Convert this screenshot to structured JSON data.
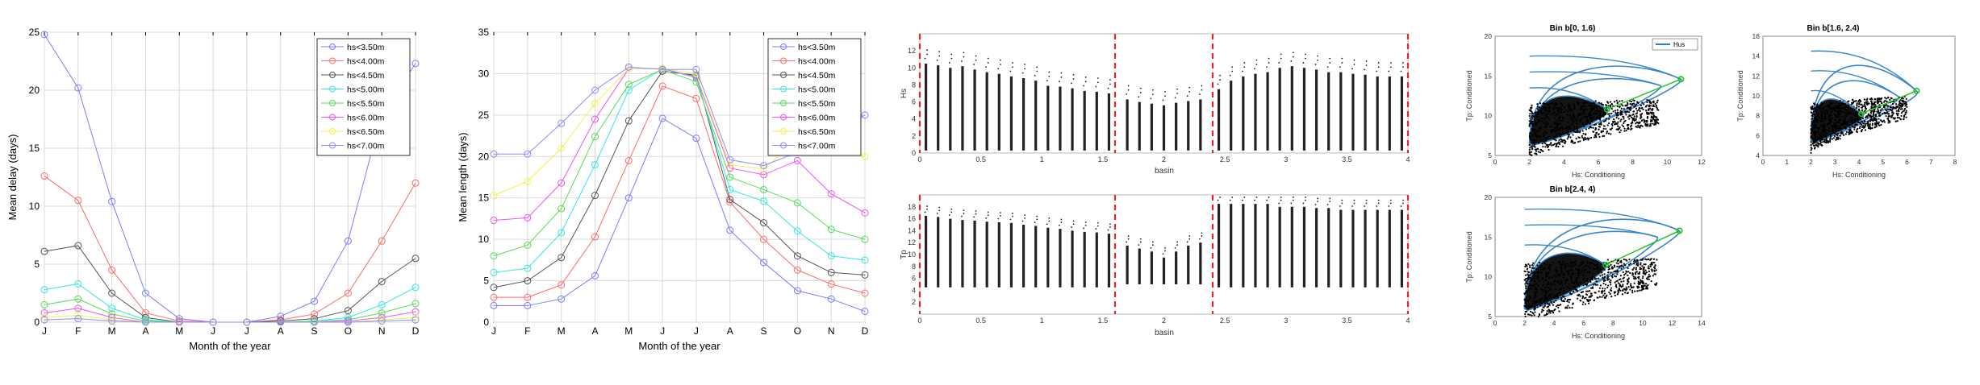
{
  "months": [
    "J",
    "F",
    "M",
    "A",
    "M",
    "J",
    "J",
    "A",
    "S",
    "O",
    "N",
    "D"
  ],
  "panel_a": {
    "ylabel": "Mean delay (days)",
    "xlabel": "Month of the year",
    "yticks": [
      "0",
      "5",
      "10",
      "15",
      "20",
      "25"
    ],
    "ylim": [
      0,
      25
    ]
  },
  "panel_b": {
    "ylabel": "Mean length (days)",
    "xlabel": "Month of the year",
    "yticks": [
      "0",
      "5",
      "10",
      "15",
      "20",
      "25",
      "30",
      "35"
    ],
    "ylim": [
      0,
      35
    ]
  },
  "basin_top": {
    "ylabel": "Hs",
    "xlabel": "basin",
    "xticks": [
      "0",
      "0.5",
      "1",
      "1.5",
      "2",
      "2.5",
      "3",
      "3.5",
      "4"
    ],
    "yticks": [
      "0",
      "2",
      "4",
      "6",
      "8",
      "10",
      "12"
    ],
    "ylim": [
      0,
      14
    ]
  },
  "basin_bottom": {
    "ylabel": "Tp",
    "xlabel": "basin",
    "xticks": [
      "0",
      "0.5",
      "1",
      "1.5",
      "2",
      "2.5",
      "3",
      "3.5",
      "4"
    ],
    "yticks": [
      "2",
      "4",
      "6",
      "8",
      "10",
      "12",
      "14",
      "16",
      "18"
    ],
    "ylim": [
      0,
      20
    ]
  },
  "scatter_1": {
    "title": "Bin b[0, 1.6)",
    "xlabel": "Hs: Conditioning",
    "ylabel": "Tp: Conditioned",
    "legend": "Hus",
    "xticks": [
      "0",
      "2",
      "4",
      "6",
      "8",
      "10",
      "12"
    ],
    "yticks": [
      "5",
      "10",
      "15",
      "20"
    ]
  },
  "scatter_2": {
    "title": "Bin b[1.6, 2.4)",
    "xlabel": "Hs: Conditioning",
    "ylabel": "Tp: Conditioned",
    "xticks": [
      "0",
      "1",
      "2",
      "3",
      "4",
      "5",
      "6",
      "7",
      "8"
    ],
    "yticks": [
      "4",
      "6",
      "8",
      "10",
      "12",
      "14",
      "16"
    ]
  },
  "scatter_3": {
    "title": "Bin b[2.4, 4)",
    "xlabel": "Hs: Conditioning",
    "ylabel": "Tp: Conditioned",
    "xticks": [
      "0",
      "2",
      "4",
      "6",
      "8",
      "10",
      "12",
      "14"
    ],
    "yticks": [
      "5",
      "10",
      "15",
      "20"
    ]
  },
  "chart_data": [
    {
      "type": "line",
      "categories": [
        "J",
        "F",
        "M",
        "A",
        "M",
        "J",
        "J",
        "A",
        "S",
        "O",
        "N",
        "D"
      ],
      "ylim": [
        0,
        25
      ],
      "xlabel": "Month of the year",
      "ylabel": "Mean delay (days)",
      "legend_position": "top-right",
      "grid": true,
      "series": [
        {
          "name": "hs<3.50m",
          "color": "#7b7bff",
          "values": [
            24.8,
            20.2,
            10.4,
            2.5,
            0.3,
            0.0,
            0.0,
            0.5,
            1.8,
            7.0,
            18.0,
            22.3
          ]
        },
        {
          "name": "hs<4.00m",
          "color": "#ff6b6b",
          "values": [
            12.6,
            10.5,
            4.5,
            0.8,
            0.1,
            0.0,
            0.0,
            0.2,
            0.7,
            2.5,
            7.0,
            12.0
          ]
        },
        {
          "name": "hs<4.50m",
          "color": "#555555",
          "values": [
            6.1,
            6.6,
            2.5,
            0.4,
            0.0,
            0.0,
            0.0,
            0.1,
            0.3,
            1.0,
            3.5,
            5.5
          ]
        },
        {
          "name": "hs<5.00m",
          "color": "#33e6e6",
          "values": [
            2.8,
            3.3,
            1.2,
            0.2,
            0.0,
            0.0,
            0.0,
            0.0,
            0.1,
            0.4,
            1.5,
            3.0
          ]
        },
        {
          "name": "hs<5.50m",
          "color": "#55dd55",
          "values": [
            1.5,
            2.0,
            0.7,
            0.1,
            0.0,
            0.0,
            0.0,
            0.0,
            0.1,
            0.2,
            0.8,
            1.6
          ]
        },
        {
          "name": "hs<6.00m",
          "color": "#ee55ee",
          "values": [
            0.8,
            1.2,
            0.4,
            0.0,
            0.0,
            0.0,
            0.0,
            0.0,
            0.0,
            0.1,
            0.4,
            0.9
          ]
        },
        {
          "name": "hs<6.50m",
          "color": "#f2f24a",
          "values": [
            0.4,
            0.6,
            0.2,
            0.0,
            0.0,
            0.0,
            0.0,
            0.0,
            0.0,
            0.0,
            0.2,
            0.4
          ]
        },
        {
          "name": "hs<7.00m",
          "color": "#8c8cff",
          "values": [
            0.2,
            0.3,
            0.1,
            0.0,
            0.0,
            0.0,
            0.0,
            0.0,
            0.0,
            0.0,
            0.1,
            0.2
          ]
        }
      ]
    },
    {
      "type": "line",
      "categories": [
        "J",
        "F",
        "M",
        "A",
        "M",
        "J",
        "J",
        "A",
        "S",
        "O",
        "N",
        "D"
      ],
      "ylim": [
        0,
        35
      ],
      "xlabel": "Month of the year",
      "ylabel": "Mean length (days)",
      "legend_position": "top-right",
      "grid": true,
      "series": [
        {
          "name": "hs<3.50m",
          "color": "#7b7bff",
          "values": [
            2.0,
            2.0,
            2.8,
            5.6,
            15.0,
            24.6,
            22.2,
            11.1,
            7.2,
            3.8,
            2.8,
            1.3
          ]
        },
        {
          "name": "hs<4.00m",
          "color": "#ff6b6b",
          "values": [
            3.0,
            3.0,
            4.5,
            10.3,
            19.5,
            28.5,
            27.0,
            14.5,
            10.0,
            6.3,
            4.6,
            3.5
          ]
        },
        {
          "name": "hs<4.50m",
          "color": "#555555",
          "values": [
            4.2,
            5.0,
            7.8,
            15.3,
            24.3,
            30.3,
            29.8,
            14.8,
            12.0,
            8.0,
            6.0,
            5.7
          ]
        },
        {
          "name": "hs<5.00m",
          "color": "#33e6e6",
          "values": [
            6.0,
            6.5,
            10.8,
            19.0,
            28.0,
            30.6,
            29.5,
            16.0,
            14.6,
            11.0,
            8.0,
            7.5
          ]
        },
        {
          "name": "hs<5.50m",
          "color": "#55dd55",
          "values": [
            8.0,
            9.3,
            13.7,
            22.4,
            28.7,
            30.5,
            29.0,
            17.5,
            16.0,
            14.4,
            11.2,
            10.0
          ]
        },
        {
          "name": "hs<6.00m",
          "color": "#ee55ee",
          "values": [
            12.3,
            12.6,
            16.8,
            24.5,
            30.6,
            30.6,
            29.6,
            18.6,
            17.8,
            19.5,
            15.5,
            13.2
          ]
        },
        {
          "name": "hs<6.50m",
          "color": "#f2f24a",
          "values": [
            15.3,
            17.0,
            21.0,
            26.4,
            30.6,
            30.6,
            30.0,
            19.0,
            18.5,
            22.0,
            21.0,
            20.0
          ]
        },
        {
          "name": "hs<7.00m",
          "color": "#8c8cff",
          "values": [
            20.3,
            20.3,
            24.0,
            28.0,
            30.8,
            30.5,
            30.5,
            19.6,
            18.9,
            20.5,
            22.5,
            25.0
          ]
        }
      ]
    },
    {
      "type": "scatter",
      "xlabel": "basin",
      "ylabel": "Hs",
      "xlim": [
        0,
        4
      ],
      "ylim": [
        0,
        14
      ],
      "dividers": [
        1.6,
        2.4
      ],
      "x": [
        0.05,
        0.15,
        0.25,
        0.35,
        0.45,
        0.55,
        0.65,
        0.75,
        0.85,
        0.95,
        1.05,
        1.15,
        1.25,
        1.35,
        1.45,
        1.55,
        1.7,
        1.8,
        1.9,
        2.0,
        2.1,
        2.2,
        2.3,
        2.45,
        2.55,
        2.65,
        2.75,
        2.85,
        2.95,
        3.05,
        3.15,
        3.25,
        3.35,
        3.45,
        3.55,
        3.65,
        3.75,
        3.85,
        3.95
      ],
      "ymin": [
        0.3,
        0.3,
        0.3,
        0.3,
        0.3,
        0.3,
        0.3,
        0.3,
        0.3,
        0.3,
        0.3,
        0.3,
        0.3,
        0.3,
        0.3,
        0.3,
        0.3,
        0.3,
        0.3,
        0.3,
        0.3,
        0.3,
        0.3,
        0.3,
        0.3,
        0.3,
        0.3,
        0.3,
        0.3,
        0.3,
        0.3,
        0.3,
        0.3,
        0.3,
        0.3,
        0.3,
        0.3,
        0.3,
        0.3
      ],
      "ymax": [
        10.5,
        10.3,
        10.0,
        10.2,
        9.8,
        9.5,
        9.3,
        9.0,
        8.8,
        8.5,
        7.9,
        7.8,
        7.6,
        7.3,
        7.2,
        7.0,
        6.3,
        6.0,
        5.8,
        5.6,
        5.9,
        6.1,
        6.3,
        7.5,
        8.5,
        9.0,
        9.3,
        9.5,
        10.0,
        10.2,
        10.0,
        9.8,
        9.5,
        9.5,
        9.3,
        9.2,
        9.0,
        9.0,
        9.0
      ]
    },
    {
      "type": "scatter",
      "xlabel": "basin",
      "ylabel": "Tp",
      "xlim": [
        0,
        4
      ],
      "ylim": [
        0,
        20
      ],
      "dividers": [
        1.6,
        2.4
      ],
      "x": [
        0.05,
        0.15,
        0.25,
        0.35,
        0.45,
        0.55,
        0.65,
        0.75,
        0.85,
        0.95,
        1.05,
        1.15,
        1.25,
        1.35,
        1.45,
        1.55,
        1.7,
        1.8,
        1.9,
        2.0,
        2.1,
        2.2,
        2.3,
        2.45,
        2.55,
        2.65,
        2.75,
        2.85,
        2.95,
        3.05,
        3.15,
        3.25,
        3.35,
        3.45,
        3.55,
        3.65,
        3.75,
        3.85,
        3.95
      ],
      "ymin": [
        4.5,
        4.5,
        4.5,
        4.5,
        4.5,
        4.5,
        4.5,
        4.5,
        4.5,
        4.5,
        4.5,
        4.5,
        4.5,
        4.5,
        4.5,
        4.5,
        5.0,
        5.0,
        5.0,
        5.0,
        5.0,
        5.0,
        5.0,
        4.5,
        4.5,
        4.5,
        4.5,
        4.5,
        4.5,
        4.5,
        4.5,
        4.5,
        4.5,
        4.5,
        4.5,
        4.5,
        4.5,
        4.5,
        4.5
      ],
      "ymax": [
        16.5,
        16.3,
        16.0,
        15.8,
        15.7,
        15.5,
        15.4,
        15.3,
        15.0,
        14.8,
        14.5,
        14.3,
        14.0,
        13.8,
        13.7,
        13.5,
        11.5,
        11.0,
        10.5,
        9.5,
        10.5,
        11.5,
        12.0,
        18.5,
        18.5,
        18.5,
        18.5,
        18.5,
        18.0,
        18.0,
        18.0,
        17.8,
        17.8,
        17.5,
        17.5,
        17.5,
        17.5,
        17.5,
        17.5
      ]
    },
    {
      "type": "scatter",
      "title": "Bin b[0, 1.6)",
      "xlabel": "Hs: Conditioning",
      "ylabel": "Tp: Conditioned",
      "xlim": [
        0,
        12
      ],
      "ylim": [
        5,
        20
      ],
      "series": [
        {
          "name": "Hus",
          "color": "#2f7fc1"
        }
      ]
    },
    {
      "type": "scatter",
      "title": "Bin b[1.6, 2.4)",
      "xlabel": "Hs: Conditioning",
      "ylabel": "Tp: Conditioned",
      "xlim": [
        0,
        8
      ],
      "ylim": [
        4,
        16
      ]
    },
    {
      "type": "scatter",
      "title": "Bin b[2.4, 4)",
      "xlabel": "Hs: Conditioning",
      "ylabel": "Tp: Conditioned",
      "xlim": [
        0,
        14
      ],
      "ylim": [
        5,
        20
      ]
    }
  ]
}
